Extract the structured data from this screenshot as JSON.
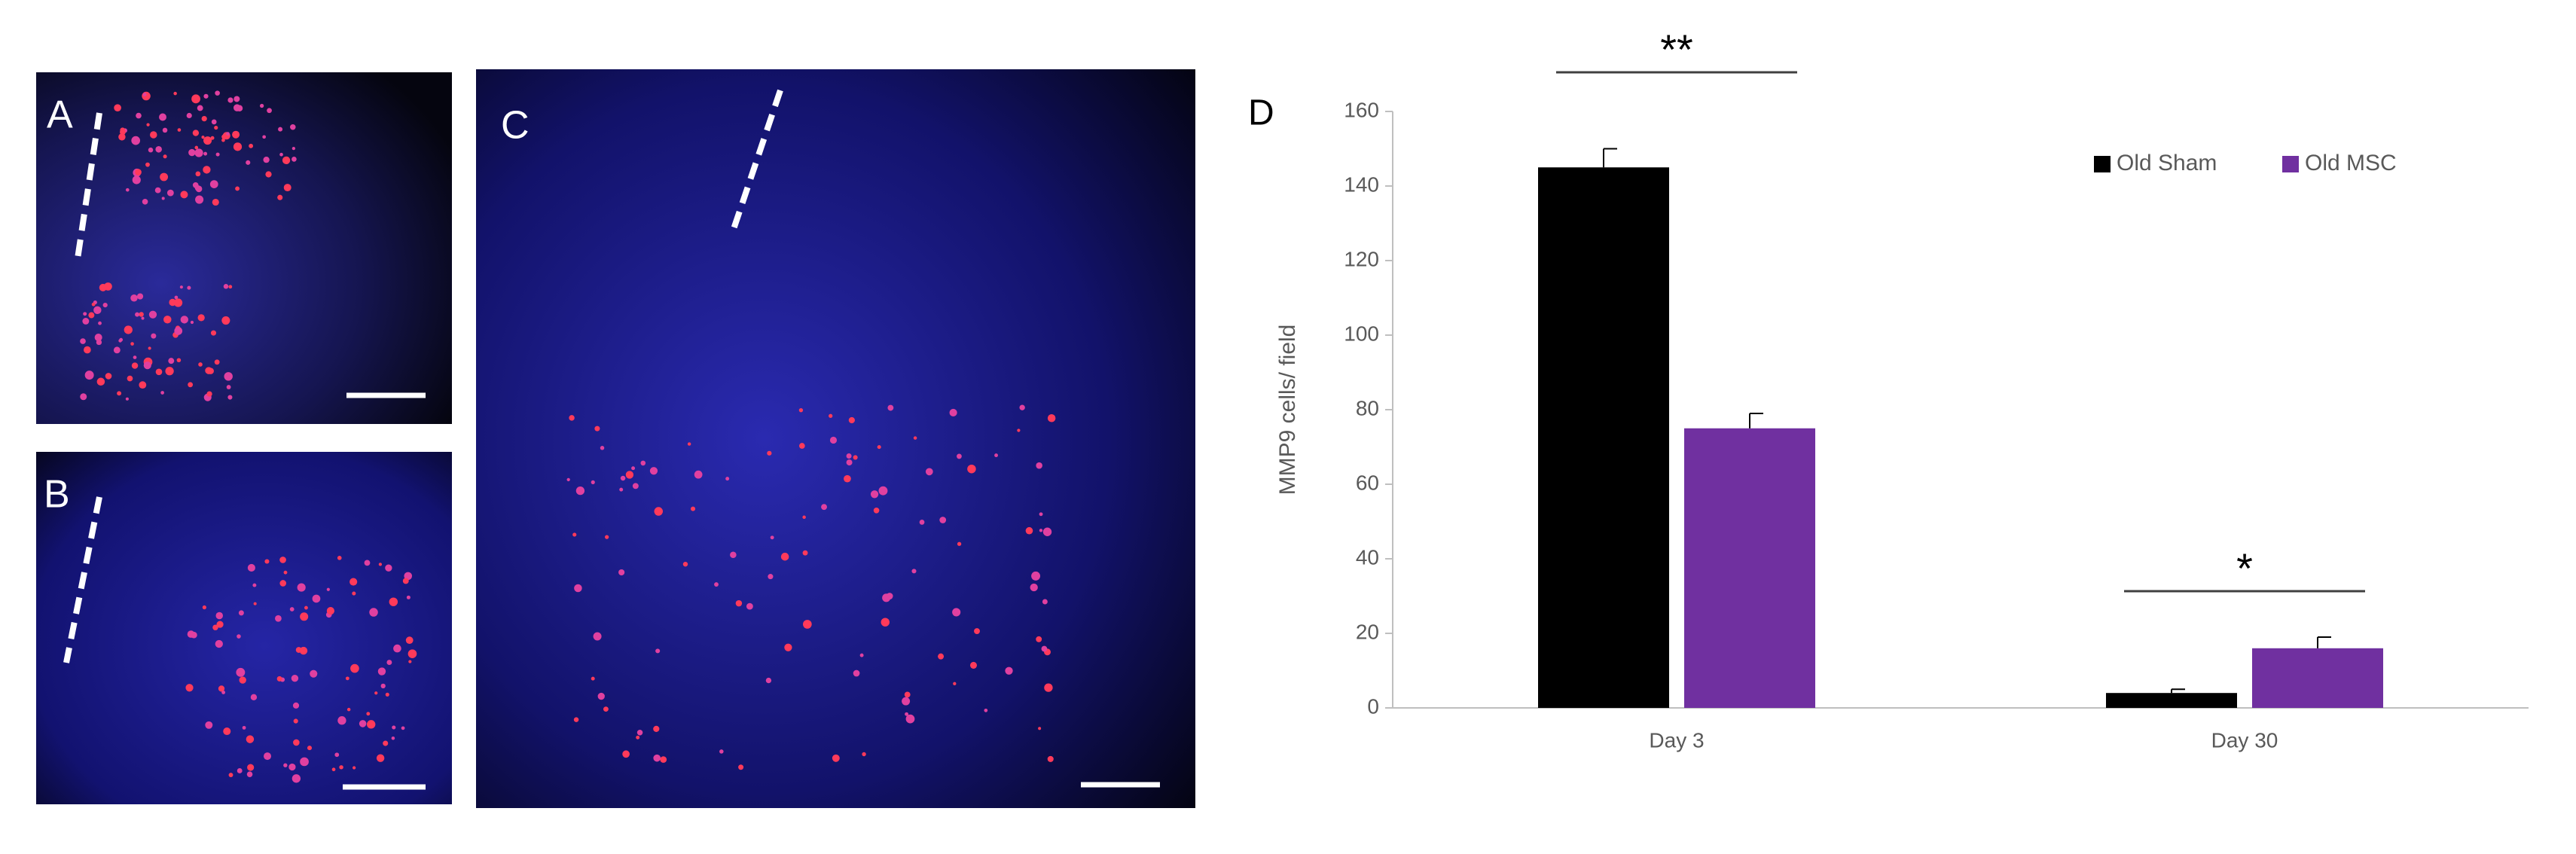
{
  "image_panels": [
    "A",
    "B",
    "C"
  ],
  "chart_data": {
    "type": "bar",
    "panel_label": "D",
    "y_label": "MMP9 cells/ field",
    "categories": [
      "Day 3",
      "Day 30"
    ],
    "series": [
      {
        "name": "Old Sham",
        "color": "#000000",
        "values": [
          145,
          4
        ],
        "errors": [
          5,
          1
        ]
      },
      {
        "name": "Old MSC",
        "color": "#7030a0",
        "values": [
          75,
          16
        ],
        "errors": [
          4,
          3
        ]
      }
    ],
    "annotations": [
      "**",
      "*"
    ],
    "ylim": [
      0,
      160
    ],
    "yticks": [
      0,
      20,
      40,
      60,
      80,
      100,
      120,
      140,
      160
    ],
    "grid": false,
    "legend": "top-right"
  }
}
